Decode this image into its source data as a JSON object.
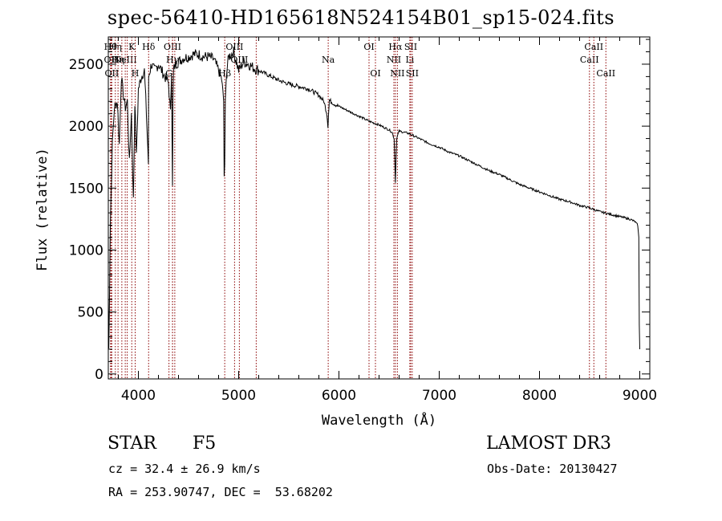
{
  "chart_data": {
    "type": "line",
    "title": "spec-56410-HD165618N524154B01_sp15-024.fits",
    "xlabel": "Wavelength (Å)",
    "ylabel": "Flux (relative)",
    "xlim": [
      3700,
      9100
    ],
    "ylim": [
      -40,
      2720
    ],
    "xticks": [
      4000,
      5000,
      6000,
      7000,
      8000,
      9000
    ],
    "yticks": [
      0,
      500,
      1000,
      1500,
      2000,
      2500
    ],
    "grid": false,
    "series": [
      {
        "name": "flux",
        "color": "#000000",
        "x": [
          3700,
          3705,
          3720,
          3740,
          3760,
          3790,
          3810,
          3830,
          3850,
          3870,
          3890,
          3910,
          3930,
          3950,
          3965,
          3980,
          4000,
          4030,
          4060,
          4080,
          4100,
          4101,
          4102,
          4130,
          4160,
          4200,
          4250,
          4300,
          4320,
          4330,
          4340,
          4345,
          4350,
          4370,
          4400,
          4450,
          4500,
          4550,
          4600,
          4650,
          4700,
          4750,
          4800,
          4830,
          4850,
          4855,
          4861,
          4867,
          4875,
          4900,
          4950,
          5000,
          5050,
          5100,
          5150,
          5200,
          5250,
          5300,
          5400,
          5500,
          5600,
          5700,
          5800,
          5850,
          5880,
          5890,
          5896,
          5905,
          5950,
          6000,
          6100,
          6200,
          6300,
          6400,
          6500,
          6530,
          6550,
          6563,
          6575,
          6600,
          6700,
          6800,
          6900,
          7000,
          7100,
          7200,
          7300,
          7400,
          7500,
          7600,
          7700,
          7800,
          7900,
          8000,
          8100,
          8200,
          8300,
          8400,
          8500,
          8600,
          8700,
          8800,
          8900,
          8950,
          8980,
          8990,
          8995,
          9000
        ],
        "y": [
          650,
          200,
          1200,
          1850,
          2150,
          2200,
          1850,
          2400,
          2250,
          2150,
          2200,
          1700,
          2100,
          1400,
          2200,
          1750,
          2300,
          2400,
          2450,
          2100,
          1700,
          2000,
          2400,
          2500,
          2450,
          2500,
          2420,
          2350,
          2100,
          2450,
          1500,
          2200,
          2450,
          2500,
          2520,
          2550,
          2560,
          2580,
          2580,
          2560,
          2560,
          2540,
          2450,
          2380,
          2200,
          1600,
          1650,
          2200,
          2400,
          2560,
          2600,
          2450,
          2520,
          2500,
          2470,
          2450,
          2430,
          2410,
          2370,
          2340,
          2320,
          2300,
          2250,
          2200,
          2100,
          2000,
          2100,
          2210,
          2180,
          2160,
          2120,
          2080,
          2040,
          2010,
          1970,
          1950,
          1900,
          1550,
          1900,
          1960,
          1940,
          1900,
          1860,
          1830,
          1790,
          1760,
          1720,
          1680,
          1640,
          1610,
          1570,
          1530,
          1500,
          1470,
          1440,
          1410,
          1390,
          1360,
          1340,
          1310,
          1290,
          1270,
          1250,
          1230,
          1200,
          1100,
          400,
          200
        ]
      }
    ],
    "line_markers": [
      {
        "x": 3722,
        "label": "Hθ",
        "row": 1
      },
      {
        "x": 3727,
        "label": "OII",
        "row": 2
      },
      {
        "x": 3735,
        "label": "OII",
        "row": 3
      },
      {
        "x": 3770,
        "label": "Hη",
        "row": 1
      },
      {
        "x": 3797,
        "label": "Hη",
        "row": 2
      },
      {
        "x": 3835,
        "label": "",
        "row": 0
      },
      {
        "x": 3869,
        "label": "NeIII",
        "row": 2
      },
      {
        "x": 3889,
        "label": "",
        "row": 0
      },
      {
        "x": 3934,
        "label": "K",
        "row": 1
      },
      {
        "x": 3968,
        "label": "H",
        "row": 3
      },
      {
        "x": 4102,
        "label": "Hδ",
        "row": 1
      },
      {
        "x": 4305,
        "label": "G",
        "row": 3
      },
      {
        "x": 4340,
        "label": "OIII",
        "row": 1
      },
      {
        "x": 4341,
        "label": "Hγ",
        "row": 2
      },
      {
        "x": 4363,
        "label": "",
        "row": 0
      },
      {
        "x": 4861,
        "label": "Hβ",
        "row": 3
      },
      {
        "x": 4959,
        "label": "OIII",
        "row": 1
      },
      {
        "x": 5007,
        "label": "OIII",
        "row": 2
      },
      {
        "x": 5175,
        "label": "",
        "row": 0
      },
      {
        "x": 5893,
        "label": "Na",
        "row": 2
      },
      {
        "x": 6300,
        "label": "OI",
        "row": 1
      },
      {
        "x": 6364,
        "label": "OI",
        "row": 3
      },
      {
        "x": 6548,
        "label": "NII",
        "row": 2
      },
      {
        "x": 6563,
        "label": "Hα",
        "row": 1
      },
      {
        "x": 6583,
        "label": "NII",
        "row": 3
      },
      {
        "x": 6707,
        "label": "Li",
        "row": 2
      },
      {
        "x": 6716,
        "label": "SII",
        "row": 1
      },
      {
        "x": 6731,
        "label": "SII",
        "row": 3
      },
      {
        "x": 8498,
        "label": "CaII",
        "row": 2
      },
      {
        "x": 8542,
        "label": "CaII",
        "row": 1
      },
      {
        "x": 8662,
        "label": "CaII",
        "row": 3
      }
    ],
    "marker_color": "#8b0000"
  },
  "info": {
    "object_type": "STAR",
    "subclass": "F5",
    "survey": "LAMOST DR3",
    "velocity": "cz = 32.4 ± 26.9 km/s",
    "obs_date": "Obs-Date: 20130427",
    "coords": "RA = 253.90747, DEC =  53.68202"
  }
}
